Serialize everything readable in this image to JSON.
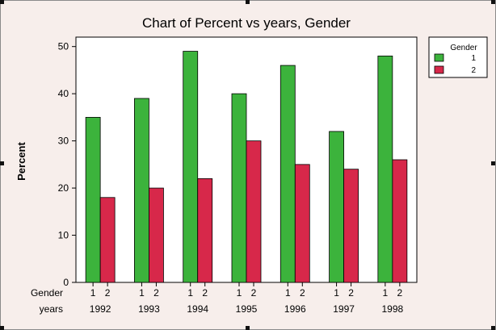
{
  "chart_data": {
    "type": "bar",
    "title": "Chart of Percent vs years, Gender",
    "ylabel": "Percent",
    "xlabel": "",
    "ylim": [
      0,
      52
    ],
    "yticks": [
      0,
      10,
      20,
      30,
      40,
      50
    ],
    "grid": false,
    "categories": [
      "1992",
      "1993",
      "1994",
      "1995",
      "1996",
      "1997",
      "1998"
    ],
    "row_labels": {
      "gender": "Gender",
      "years": "years"
    },
    "series": [
      {
        "name": "1",
        "color": "#3cb33c",
        "values": [
          35,
          39,
          49,
          40,
          46,
          32,
          48
        ]
      },
      {
        "name": "2",
        "color": "#d7284a",
        "values": [
          18,
          20,
          22,
          30,
          25,
          24,
          26
        ]
      }
    ],
    "legend": {
      "title": "Gender",
      "position": "right"
    }
  }
}
